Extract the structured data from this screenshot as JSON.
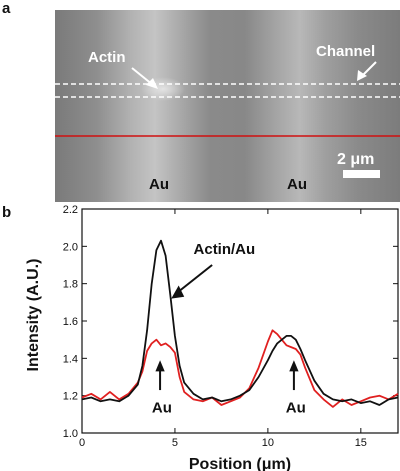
{
  "panel_a": {
    "letter": "a",
    "labels": {
      "actin": "Actin",
      "channel": "Channel",
      "au_left": "Au",
      "au_right": "Au",
      "scalebar": "2 μm"
    }
  },
  "panel_b": {
    "letter": "b"
  },
  "chart_data": {
    "type": "line",
    "xlabel": "Position (μm)",
    "ylabel": "Intensity (A.U.)",
    "xlim": [
      0,
      17
    ],
    "ylim": [
      1.0,
      2.2
    ],
    "xticks": [
      0,
      5,
      10,
      15
    ],
    "yticks": [
      1.0,
      1.2,
      1.4,
      1.6,
      1.8,
      2.0,
      2.2
    ],
    "grid": false,
    "series": [
      {
        "color": "#111111",
        "x": [
          0,
          0.5,
          1,
          1.5,
          2,
          2.5,
          3,
          3.25,
          3.5,
          3.75,
          4,
          4.25,
          4.5,
          4.75,
          5,
          5.25,
          5.5,
          6,
          6.5,
          7,
          7.5,
          8,
          8.5,
          9,
          9.5,
          10,
          10.25,
          10.5,
          10.75,
          11,
          11.25,
          11.5,
          11.75,
          12,
          12.5,
          13,
          13.5,
          14,
          14.5,
          15,
          15.5,
          16,
          16.5,
          17
        ],
        "y": [
          1.18,
          1.19,
          1.17,
          1.18,
          1.17,
          1.2,
          1.26,
          1.36,
          1.55,
          1.8,
          1.98,
          2.03,
          1.95,
          1.74,
          1.52,
          1.36,
          1.27,
          1.21,
          1.18,
          1.19,
          1.17,
          1.18,
          1.2,
          1.23,
          1.3,
          1.39,
          1.44,
          1.48,
          1.5,
          1.52,
          1.52,
          1.5,
          1.45,
          1.39,
          1.28,
          1.21,
          1.18,
          1.17,
          1.18,
          1.16,
          1.17,
          1.15,
          1.18,
          1.19
        ]
      },
      {
        "color": "#e02020",
        "x": [
          0,
          0.5,
          1,
          1.5,
          2,
          2.5,
          3,
          3.25,
          3.5,
          3.75,
          4,
          4.25,
          4.5,
          4.75,
          5,
          5.25,
          5.5,
          6,
          6.5,
          7,
          7.5,
          8,
          8.5,
          9,
          9.5,
          10,
          10.25,
          10.5,
          10.75,
          11,
          11.25,
          11.5,
          11.75,
          12,
          12.5,
          13,
          13.5,
          14,
          14.5,
          15,
          15.5,
          16,
          16.5,
          17
        ],
        "y": [
          1.19,
          1.21,
          1.18,
          1.22,
          1.18,
          1.21,
          1.27,
          1.33,
          1.44,
          1.48,
          1.5,
          1.47,
          1.48,
          1.46,
          1.43,
          1.3,
          1.22,
          1.18,
          1.17,
          1.19,
          1.15,
          1.17,
          1.19,
          1.24,
          1.35,
          1.49,
          1.55,
          1.53,
          1.5,
          1.47,
          1.46,
          1.45,
          1.42,
          1.35,
          1.23,
          1.18,
          1.14,
          1.18,
          1.15,
          1.17,
          1.19,
          1.2,
          1.18,
          1.21
        ]
      }
    ],
    "annotations": [
      {
        "text": "Actin/Au"
      },
      {
        "text": "Au"
      },
      {
        "text": "Au"
      }
    ]
  }
}
